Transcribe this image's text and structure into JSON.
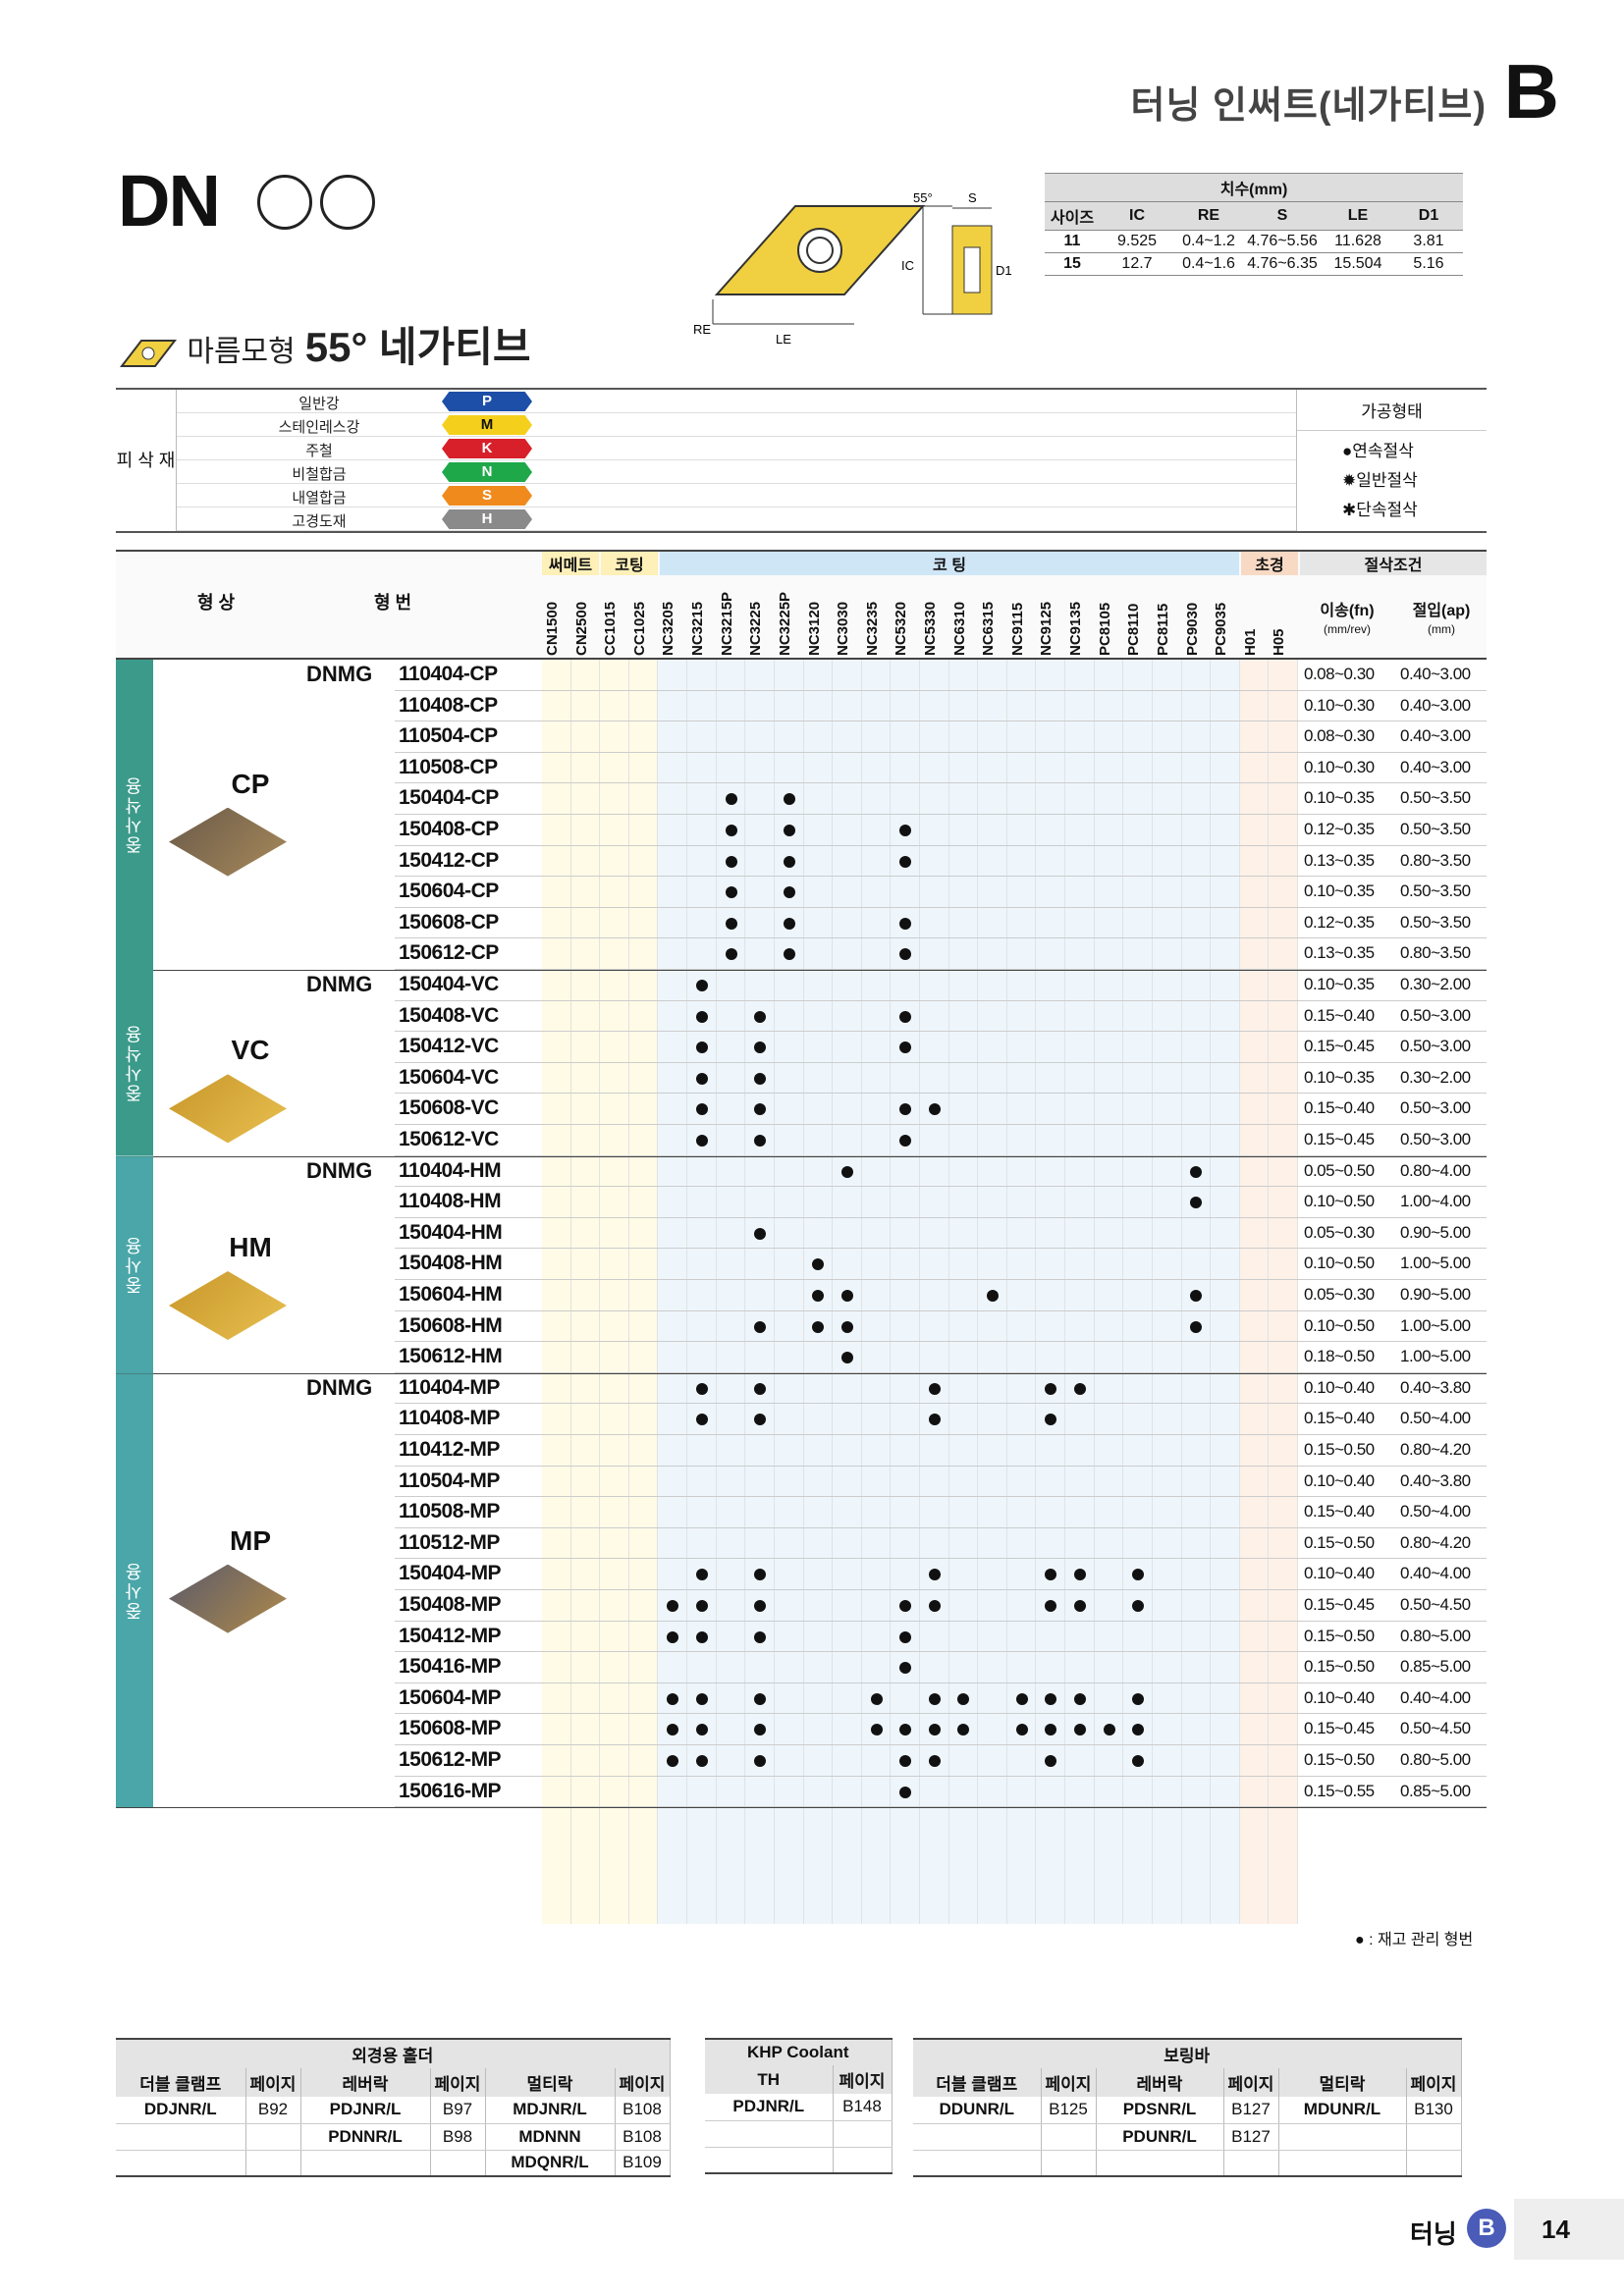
{
  "header": {
    "title": "터닝 인써트(네가티브)",
    "letter": "B"
  },
  "series": "DN",
  "subtitle": {
    "shape": "마름모형",
    "angle": "55° 네가티브"
  },
  "figure_labels": {
    "angle": "55°",
    "s": "S",
    "ic": "IC",
    "d1": "D1",
    "re": "RE",
    "le": "LE"
  },
  "dims": {
    "caption": "치수(mm)",
    "headers": [
      "사이즈",
      "IC",
      "RE",
      "S",
      "LE",
      "D1"
    ],
    "rows": [
      [
        "11",
        "9.525",
        "0.4~1.2",
        "4.76~5.56",
        "11.628",
        "3.81"
      ],
      [
        "15",
        "12.7",
        "0.4~1.6",
        "4.76~6.35",
        "15.504",
        "5.16"
      ]
    ]
  },
  "materials": {
    "group_label": "피 삭 재",
    "rows": [
      {
        "name": "일반강",
        "code": "P",
        "color": "#1e4fa8"
      },
      {
        "name": "스테인레스강",
        "code": "M",
        "color": "#f4cf1c"
      },
      {
        "name": "주철",
        "code": "K",
        "color": "#d8202a"
      },
      {
        "name": "비철합금",
        "code": "N",
        "color": "#1ea84a"
      },
      {
        "name": "내열합금",
        "code": "S",
        "color": "#f08a1c"
      },
      {
        "name": "고경도재",
        "code": "H",
        "color": "#8a8a8a"
      }
    ],
    "process_title": "가공형태",
    "process": [
      "연속절삭",
      "일반절삭",
      "단속절삭"
    ]
  },
  "grid_header": {
    "shape": "형 상",
    "designation": "형 번",
    "cermet": "써메트",
    "coated": "코팅",
    "coating": "코 팅",
    "ultra": "초경",
    "conditions": "절삭조건",
    "feed": "이송(fn)",
    "feed_unit": "(mm/rev)",
    "depth": "절입(ap)",
    "depth_unit": "(mm)",
    "grades": [
      "CN1500",
      "CN2500",
      "CC1015",
      "CC1025",
      "NC3205",
      "NC3215",
      "NC3215P",
      "NC3225",
      "NC3225P",
      "NC3120",
      "NC3030",
      "NC3235",
      "NC5320",
      "NC5330",
      "NC6310",
      "NC6315",
      "NC9115",
      "NC9125",
      "NC9135",
      "PC8105",
      "PC8110",
      "PC8115",
      "PC9030",
      "PC9035",
      "H01",
      "H05"
    ]
  },
  "groups": [
    {
      "use": "중사삭용",
      "name": "CP",
      "prefix": "DNMG",
      "rows": [
        {
          "d": "110404-CP",
          "f": "0.08~0.30",
          "a": "0.40~3.00",
          "dots": []
        },
        {
          "d": "110408-CP",
          "f": "0.10~0.30",
          "a": "0.40~3.00",
          "dots": []
        },
        {
          "d": "110504-CP",
          "f": "0.08~0.30",
          "a": "0.40~3.00",
          "dots": []
        },
        {
          "d": "110508-CP",
          "f": "0.10~0.30",
          "a": "0.40~3.00",
          "dots": []
        },
        {
          "d": "150404-CP",
          "f": "0.10~0.35",
          "a": "0.50~3.50",
          "dots": [
            6,
            8
          ]
        },
        {
          "d": "150408-CP",
          "f": "0.12~0.35",
          "a": "0.50~3.50",
          "dots": [
            6,
            8,
            12
          ]
        },
        {
          "d": "150412-CP",
          "f": "0.13~0.35",
          "a": "0.80~3.50",
          "dots": [
            6,
            8,
            12
          ]
        },
        {
          "d": "150604-CP",
          "f": "0.10~0.35",
          "a": "0.50~3.50",
          "dots": [
            6,
            8
          ]
        },
        {
          "d": "150608-CP",
          "f": "0.12~0.35",
          "a": "0.50~3.50",
          "dots": [
            6,
            8,
            12
          ]
        },
        {
          "d": "150612-CP",
          "f": "0.13~0.35",
          "a": "0.80~3.50",
          "dots": [
            6,
            8,
            12
          ]
        }
      ]
    },
    {
      "use": "중사삭용",
      "name": "VC",
      "prefix": "DNMG",
      "rows": [
        {
          "d": "150404-VC",
          "f": "0.10~0.35",
          "a": "0.30~2.00",
          "dots": [
            5
          ]
        },
        {
          "d": "150408-VC",
          "f": "0.15~0.40",
          "a": "0.50~3.00",
          "dots": [
            5,
            7,
            12
          ]
        },
        {
          "d": "150412-VC",
          "f": "0.15~0.45",
          "a": "0.50~3.00",
          "dots": [
            5,
            7,
            12
          ]
        },
        {
          "d": "150604-VC",
          "f": "0.10~0.35",
          "a": "0.30~2.00",
          "dots": [
            5,
            7
          ]
        },
        {
          "d": "150608-VC",
          "f": "0.15~0.40",
          "a": "0.50~3.00",
          "dots": [
            5,
            7,
            12,
            13
          ]
        },
        {
          "d": "150612-VC",
          "f": "0.15~0.45",
          "a": "0.50~3.00",
          "dots": [
            5,
            7,
            12
          ]
        }
      ]
    },
    {
      "use": "중사용",
      "name": "HM",
      "prefix": "DNMG",
      "rows": [
        {
          "d": "110404-HM",
          "f": "0.05~0.50",
          "a": "0.80~4.00",
          "dots": [
            10,
            22
          ]
        },
        {
          "d": "110408-HM",
          "f": "0.10~0.50",
          "a": "1.00~4.00",
          "dots": [
            22
          ]
        },
        {
          "d": "150404-HM",
          "f": "0.05~0.30",
          "a": "0.90~5.00",
          "dots": [
            7
          ]
        },
        {
          "d": "150408-HM",
          "f": "0.10~0.50",
          "a": "1.00~5.00",
          "dots": [
            9
          ]
        },
        {
          "d": "150604-HM",
          "f": "0.05~0.30",
          "a": "0.90~5.00",
          "dots": [
            9,
            10,
            15,
            22
          ]
        },
        {
          "d": "150608-HM",
          "f": "0.10~0.50",
          "a": "1.00~5.00",
          "dots": [
            7,
            9,
            10,
            22
          ]
        },
        {
          "d": "150612-HM",
          "f": "0.18~0.50",
          "a": "1.00~5.00",
          "dots": [
            10
          ]
        }
      ]
    },
    {
      "use": "중사용",
      "name": "MP",
      "prefix": "DNMG",
      "rows": [
        {
          "d": "110404-MP",
          "f": "0.10~0.40",
          "a": "0.40~3.80",
          "dots": [
            5,
            7,
            13,
            17,
            18
          ]
        },
        {
          "d": "110408-MP",
          "f": "0.15~0.40",
          "a": "0.50~4.00",
          "dots": [
            5,
            7,
            13,
            17
          ]
        },
        {
          "d": "110412-MP",
          "f": "0.15~0.50",
          "a": "0.80~4.20",
          "dots": []
        },
        {
          "d": "110504-MP",
          "f": "0.10~0.40",
          "a": "0.40~3.80",
          "dots": []
        },
        {
          "d": "110508-MP",
          "f": "0.15~0.40",
          "a": "0.50~4.00",
          "dots": []
        },
        {
          "d": "110512-MP",
          "f": "0.15~0.50",
          "a": "0.80~4.20",
          "dots": []
        },
        {
          "d": "150404-MP",
          "f": "0.10~0.40",
          "a": "0.40~4.00",
          "dots": [
            5,
            7,
            13,
            17,
            18,
            20
          ]
        },
        {
          "d": "150408-MP",
          "f": "0.15~0.45",
          "a": "0.50~4.50",
          "dots": [
            4,
            5,
            7,
            12,
            13,
            17,
            18,
            20
          ]
        },
        {
          "d": "150412-MP",
          "f": "0.15~0.50",
          "a": "0.80~5.00",
          "dots": [
            4,
            5,
            7,
            12
          ]
        },
        {
          "d": "150416-MP",
          "f": "0.15~0.50",
          "a": "0.85~5.00",
          "dots": [
            12
          ]
        },
        {
          "d": "150604-MP",
          "f": "0.10~0.40",
          "a": "0.40~4.00",
          "dots": [
            4,
            5,
            7,
            11,
            13,
            14,
            16,
            17,
            18,
            20
          ]
        },
        {
          "d": "150608-MP",
          "f": "0.15~0.45",
          "a": "0.50~4.50",
          "dots": [
            4,
            5,
            7,
            11,
            12,
            13,
            14,
            16,
            17,
            18,
            19,
            20
          ]
        },
        {
          "d": "150612-MP",
          "f": "0.15~0.50",
          "a": "0.80~5.00",
          "dots": [
            4,
            5,
            7,
            12,
            13,
            17,
            20
          ]
        },
        {
          "d": "150616-MP",
          "f": "0.15~0.55",
          "a": "0.85~5.00",
          "dots": [
            12
          ]
        }
      ]
    }
  ],
  "legend_note": "● : 재고 관리 형번",
  "holders": {
    "external": {
      "title": "외경용 홀더",
      "headers": [
        "더블 클램프",
        "페이지",
        "레버락",
        "페이지",
        "멀티락",
        "페이지"
      ],
      "rows": [
        [
          "DDJNR/L",
          "B92",
          "PDJNR/L",
          "B97",
          "MDJNR/L",
          "B108"
        ],
        [
          "",
          "",
          "PDNNR/L",
          "B98",
          "MDNNN",
          "B108"
        ],
        [
          "",
          "",
          "",
          "",
          "MDQNR/L",
          "B109"
        ]
      ]
    },
    "khp": {
      "title": "KHP Coolant",
      "headers": [
        "TH",
        "페이지"
      ],
      "rows": [
        [
          "PDJNR/L",
          "B148"
        ],
        [
          "",
          ""
        ],
        [
          "",
          ""
        ]
      ]
    },
    "boring": {
      "title": "보링바",
      "headers": [
        "더블 클램프",
        "페이지",
        "레버락",
        "페이지",
        "멀티락",
        "페이지"
      ],
      "rows": [
        [
          "DDUNR/L",
          "B125",
          "PDSNR/L",
          "B127",
          "MDUNR/L",
          "B130"
        ],
        [
          "",
          "",
          "PDUNR/L",
          "B127",
          "",
          ""
        ],
        [
          "",
          "",
          "",
          "",
          "",
          ""
        ]
      ]
    }
  },
  "footer": {
    "section": "터닝",
    "letter": "B",
    "page": "14"
  }
}
